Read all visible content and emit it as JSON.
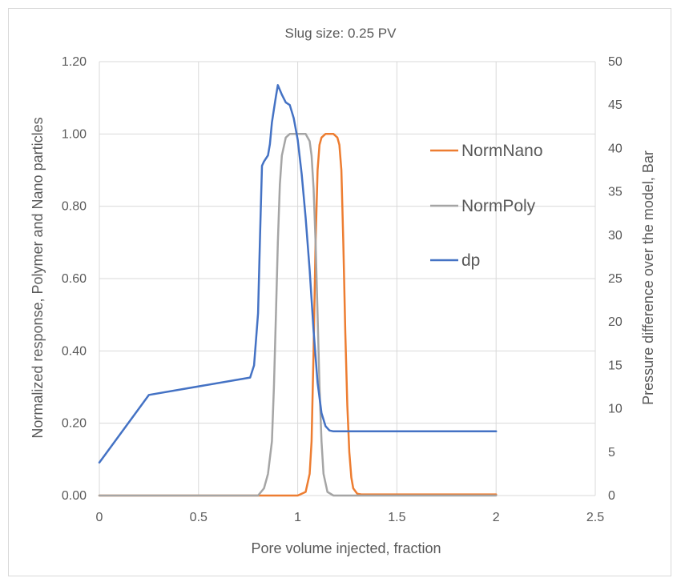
{
  "chart_data": {
    "type": "line",
    "title": "Slug size: 0.25 PV",
    "xlabel": "Pore volume injected, fraction",
    "ylabel": "Normalized response, Polymer and Nano particles",
    "y2label": "Pressure difference over the model, Bar",
    "xlim": [
      0,
      2.5
    ],
    "ylim": [
      0,
      1.2
    ],
    "y2lim": [
      0,
      50
    ],
    "xticks": [
      "0",
      "0.5",
      "1",
      "1.5",
      "2",
      "2.5"
    ],
    "yticks": [
      "0.00",
      "0.20",
      "0.40",
      "0.60",
      "0.80",
      "1.00",
      "1.20"
    ],
    "y2ticks": [
      "0",
      "5",
      "10",
      "15",
      "20",
      "25",
      "30",
      "35",
      "40",
      "45",
      "50"
    ],
    "grid": true,
    "legend_position": "right, inside plot",
    "series": [
      {
        "name": "NormNano",
        "color": "#ed7d31",
        "axis": "left",
        "x": [
          0,
          1.0,
          1.04,
          1.06,
          1.07,
          1.08,
          1.09,
          1.1,
          1.11,
          1.12,
          1.14,
          1.16,
          1.18,
          1.2,
          1.21,
          1.22,
          1.23,
          1.24,
          1.25,
          1.26,
          1.27,
          1.28,
          1.3,
          1.32,
          1.35,
          2.0
        ],
        "y": [
          0,
          0,
          0.01,
          0.06,
          0.15,
          0.4,
          0.7,
          0.9,
          0.97,
          0.99,
          1.0,
          1.0,
          1.0,
          0.99,
          0.97,
          0.9,
          0.7,
          0.45,
          0.25,
          0.12,
          0.05,
          0.02,
          0.005,
          0.003,
          0.003,
          0.003
        ]
      },
      {
        "name": "NormPoly",
        "color": "#a5a5a5",
        "axis": "left",
        "x": [
          0,
          0.8,
          0.83,
          0.85,
          0.87,
          0.88,
          0.89,
          0.9,
          0.91,
          0.92,
          0.94,
          0.96,
          0.98,
          1.0,
          1.02,
          1.04,
          1.06,
          1.07,
          1.08,
          1.09,
          1.1,
          1.11,
          1.12,
          1.13,
          1.15,
          1.18,
          2.0
        ],
        "y": [
          0,
          0,
          0.02,
          0.06,
          0.15,
          0.3,
          0.5,
          0.7,
          0.86,
          0.94,
          0.99,
          1.0,
          1.0,
          1.0,
          1.0,
          1.0,
          0.98,
          0.94,
          0.85,
          0.7,
          0.5,
          0.3,
          0.15,
          0.06,
          0.01,
          0,
          0
        ]
      },
      {
        "name": "dp",
        "color": "#4472c4",
        "axis": "right",
        "x": [
          0,
          0.25,
          0.76,
          0.78,
          0.8,
          0.81,
          0.82,
          0.83,
          0.85,
          0.86,
          0.87,
          0.88,
          0.89,
          0.9,
          0.92,
          0.94,
          0.96,
          0.98,
          1.0,
          1.02,
          1.04,
          1.06,
          1.08,
          1.1,
          1.12,
          1.14,
          1.16,
          1.18,
          1.2,
          2.0
        ],
        "y": [
          3.8,
          11.6,
          13.6,
          15.0,
          21.0,
          30.0,
          38.0,
          38.5,
          39.2,
          40.5,
          43.0,
          44.5,
          46.0,
          47.3,
          46.2,
          45.3,
          45.0,
          43.5,
          41.0,
          37.0,
          32.0,
          26.0,
          19.0,
          13.0,
          9.5,
          8.0,
          7.5,
          7.4,
          7.4,
          7.4
        ]
      }
    ]
  }
}
